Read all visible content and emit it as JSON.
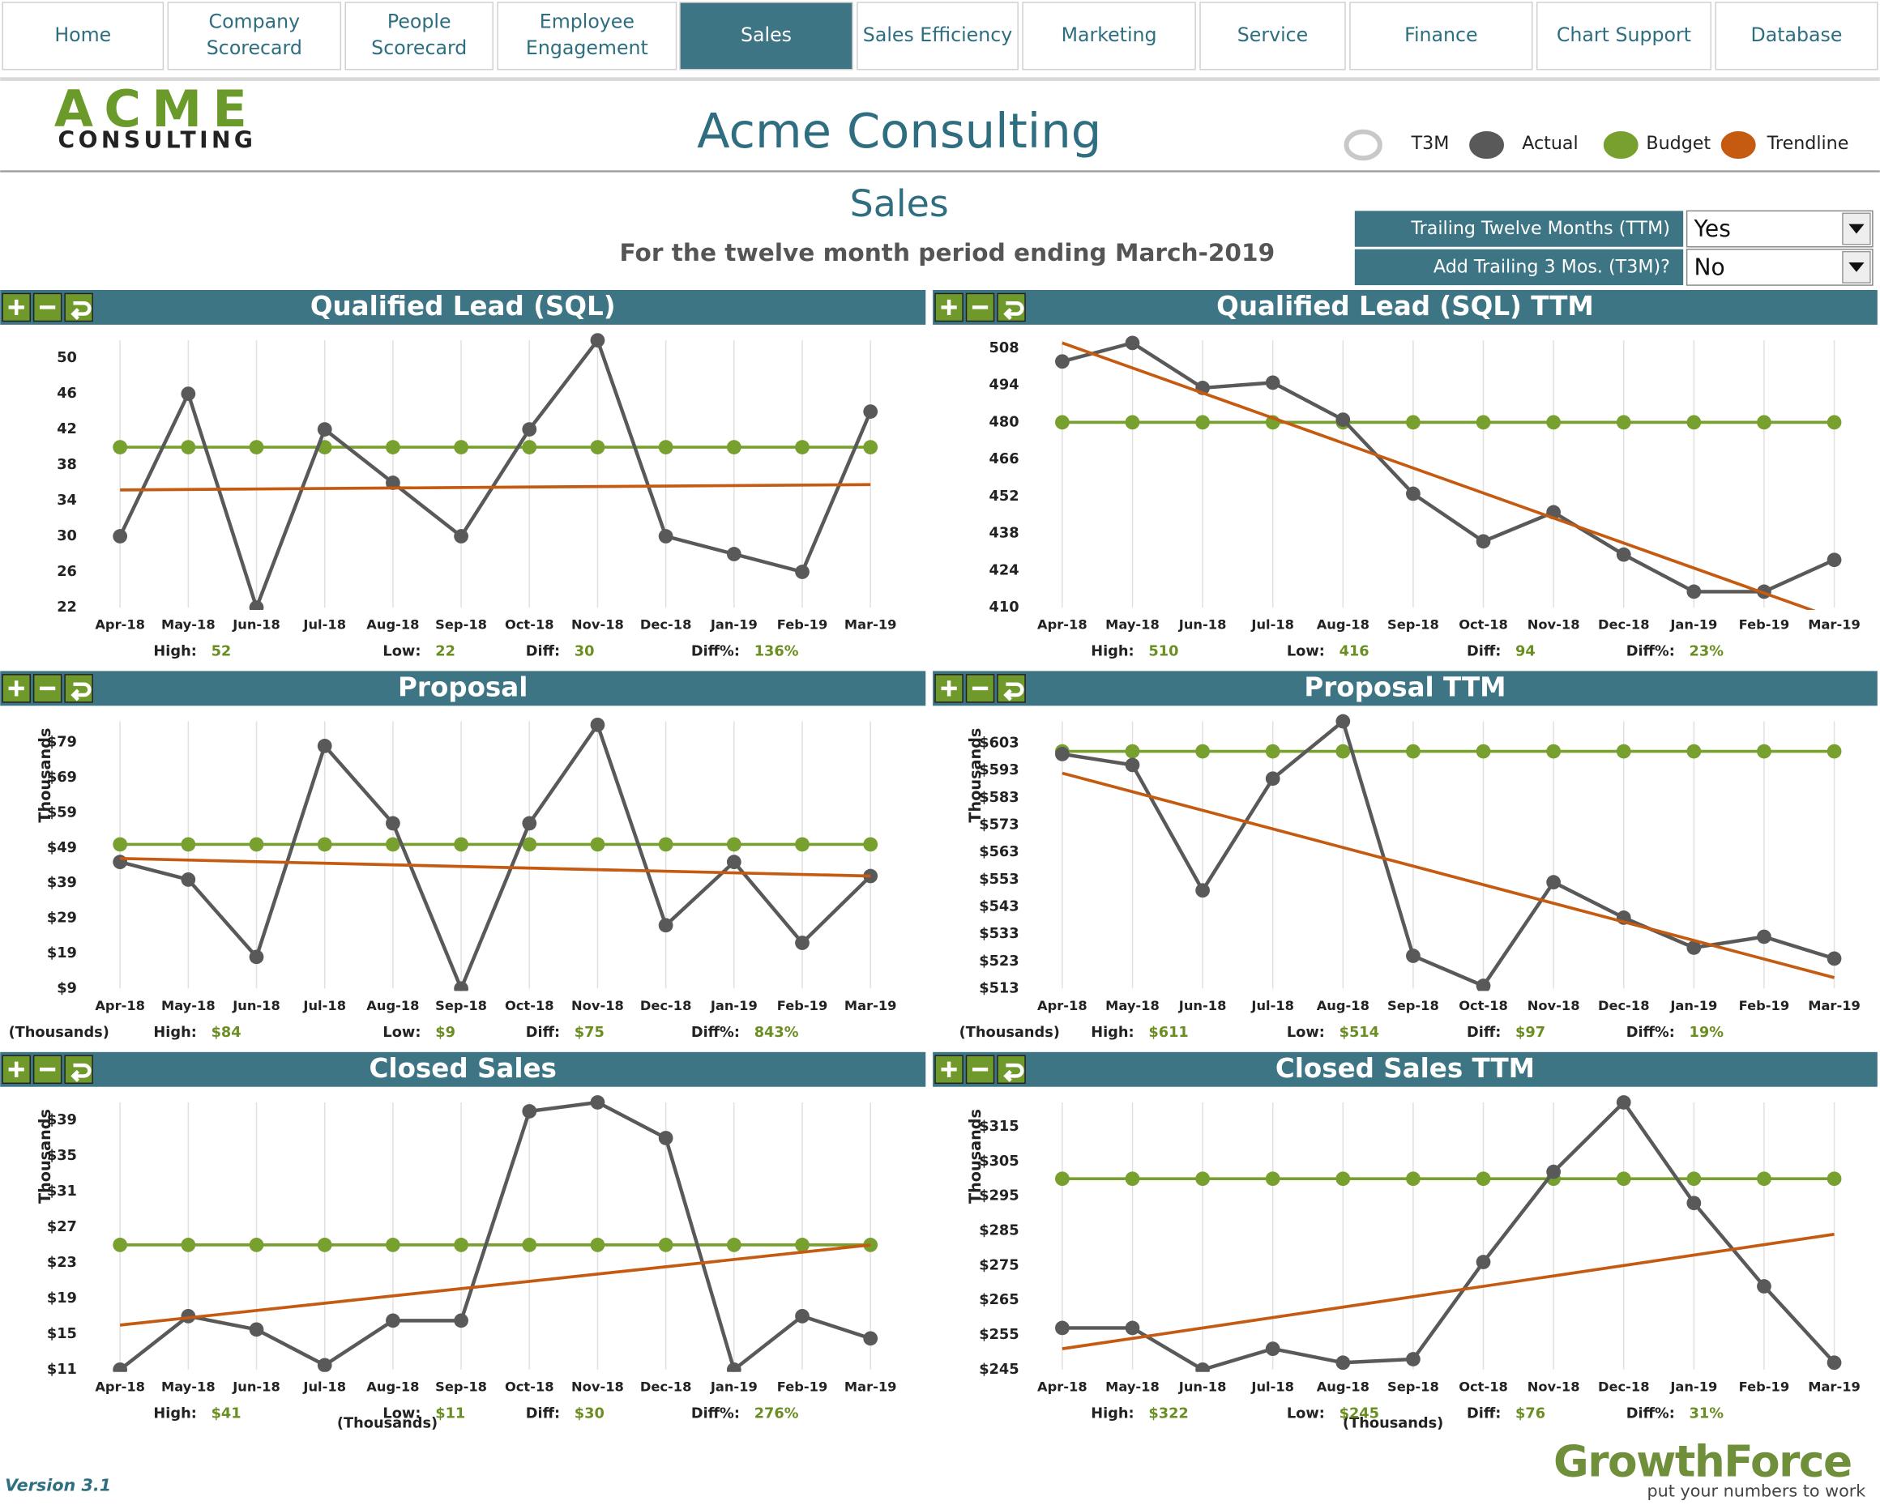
{
  "nav": [
    [
      "Home"
    ],
    [
      "Company",
      "Scorecard"
    ],
    [
      "People",
      "Scorecard"
    ],
    [
      "Employee",
      "Engagement"
    ],
    [
      "Sales"
    ],
    [
      "Sales Efficiency"
    ],
    [
      "Marketing"
    ],
    [
      "Service"
    ],
    [
      "Finance"
    ],
    [
      "Chart Support"
    ],
    [
      "Database"
    ]
  ],
  "active_tab": 4,
  "header": {
    "logo": [
      "ACME",
      "CONSULTING"
    ],
    "title": "Acme Consulting",
    "legend": [
      {
        "label": "T3M",
        "color": "#c8c8c8",
        "hollow": true
      },
      {
        "label": "Actual",
        "color": "#595959"
      },
      {
        "label": "Budget",
        "color": "#77a02e"
      },
      {
        "label": "Trendline",
        "color": "#c55a11"
      }
    ]
  },
  "page": {
    "title": "Sales",
    "subtitle": "For the twelve month period ending March-2019"
  },
  "controls": [
    {
      "label": "Trailing Twelve Months (TTM)",
      "value": "Yes"
    },
    {
      "label": "Add Trailing 3 Mos. (T3M)?",
      "value": "No"
    }
  ],
  "chart_data": [
    {
      "type": "line",
      "title": "Qualified Lead (SQL)",
      "categories": [
        "Apr-18",
        "May-18",
        "Jun-18",
        "Jul-18",
        "Aug-18",
        "Sep-18",
        "Oct-18",
        "Nov-18",
        "Dec-18",
        "Jan-19",
        "Feb-19",
        "Mar-19"
      ],
      "actual": [
        30,
        46,
        22,
        42,
        36,
        30,
        42,
        52,
        30,
        28,
        26,
        44
      ],
      "budget": [
        40,
        40,
        40,
        40,
        40,
        40,
        40,
        40,
        40,
        40,
        40,
        40
      ],
      "trend": [
        35.2,
        35.8
      ],
      "ylim": [
        22,
        52
      ],
      "yticks": [
        22,
        26,
        30,
        34,
        38,
        42,
        46,
        50
      ],
      "stats": [
        {
          "label": "High:",
          "value": "52"
        },
        {
          "label": "Low:",
          "value": "22"
        },
        {
          "label": "Diff:",
          "value": "30"
        },
        {
          "label": "Diff%:",
          "value": "136%"
        }
      ]
    },
    {
      "type": "line",
      "title": "Qualified Lead (SQL) TTM",
      "categories": [
        "Apr-18",
        "May-18",
        "Jun-18",
        "Jul-18",
        "Aug-18",
        "Sep-18",
        "Oct-18",
        "Nov-18",
        "Dec-18",
        "Jan-19",
        "Feb-19",
        "Mar-19"
      ],
      "actual": [
        503,
        510,
        493,
        495,
        481,
        453,
        435,
        446,
        430,
        416,
        416,
        428
      ],
      "budget": [
        480,
        480,
        480,
        480,
        480,
        480,
        480,
        480,
        480,
        480,
        480,
        480
      ],
      "trend": [
        510,
        406
      ],
      "ylim": [
        410,
        511
      ],
      "yticks": [
        410,
        424,
        438,
        452,
        466,
        480,
        494,
        508
      ],
      "stats": [
        {
          "label": "High:",
          "value": "510"
        },
        {
          "label": "Low:",
          "value": "416"
        },
        {
          "label": "Diff:",
          "value": "94"
        },
        {
          "label": "Diff%:",
          "value": "23%"
        }
      ]
    },
    {
      "type": "line",
      "title": "Proposal",
      "categories": [
        "Apr-18",
        "May-18",
        "Jun-18",
        "Jul-18",
        "Aug-18",
        "Sep-18",
        "Oct-18",
        "Nov-18",
        "Dec-18",
        "Jan-19",
        "Feb-19",
        "Mar-19"
      ],
      "actual": [
        45,
        40,
        18,
        78,
        56,
        9,
        56,
        84,
        27,
        45,
        22,
        41
      ],
      "budget": [
        50,
        50,
        50,
        50,
        50,
        50,
        50,
        50,
        50,
        50,
        50,
        50
      ],
      "trend": [
        46,
        41
      ],
      "ylim": [
        9,
        85
      ],
      "yticks": [
        {
          "value": 9,
          "label": "$9"
        },
        {
          "value": 19,
          "label": "$19"
        },
        {
          "value": 29,
          "label": "$29"
        },
        {
          "value": 39,
          "label": "$39"
        },
        {
          "value": 49,
          "label": "$49"
        },
        {
          "value": 59,
          "label": "$59"
        },
        {
          "value": 69,
          "label": "$69"
        },
        {
          "value": 79,
          "label": "$79"
        }
      ],
      "y_label": "Thousands",
      "units_note": "(Thousands)",
      "stats": [
        {
          "label": "High:",
          "value": "$84"
        },
        {
          "label": "Low:",
          "value": "$9"
        },
        {
          "label": "Diff:",
          "value": "$75"
        },
        {
          "label": "Diff%:",
          "value": "843%"
        }
      ]
    },
    {
      "type": "line",
      "title": "Proposal TTM",
      "categories": [
        "Apr-18",
        "May-18",
        "Jun-18",
        "Jul-18",
        "Aug-18",
        "Sep-18",
        "Oct-18",
        "Nov-18",
        "Dec-18",
        "Jan-19",
        "Feb-19",
        "Mar-19"
      ],
      "actual": [
        599,
        595,
        549,
        590,
        611,
        525,
        514,
        552,
        539,
        528,
        532,
        524
      ],
      "budget": [
        600,
        600,
        600,
        600,
        600,
        600,
        600,
        600,
        600,
        600,
        600,
        600
      ],
      "trend": [
        592,
        517
      ],
      "ylim": [
        513,
        611
      ],
      "yticks": [
        {
          "value": 513,
          "label": "$513"
        },
        {
          "value": 523,
          "label": "$523"
        },
        {
          "value": 533,
          "label": "$533"
        },
        {
          "value": 543,
          "label": "$543"
        },
        {
          "value": 553,
          "label": "$553"
        },
        {
          "value": 563,
          "label": "$563"
        },
        {
          "value": 573,
          "label": "$573"
        },
        {
          "value": 583,
          "label": "$583"
        },
        {
          "value": 593,
          "label": "$593"
        },
        {
          "value": 603,
          "label": "$603"
        }
      ],
      "y_label": "Thousands",
      "units_note": "(Thousands)",
      "stats": [
        {
          "label": "High:",
          "value": "$611"
        },
        {
          "label": "Low:",
          "value": "$514"
        },
        {
          "label": "Diff:",
          "value": "$97"
        },
        {
          "label": "Diff%:",
          "value": "19%"
        }
      ]
    },
    {
      "type": "line",
      "title": "Closed Sales",
      "categories": [
        "Apr-18",
        "May-18",
        "Jun-18",
        "Jul-18",
        "Aug-18",
        "Sep-18",
        "Oct-18",
        "Nov-18",
        "Dec-18",
        "Jan-19",
        "Feb-19",
        "Mar-19"
      ],
      "actual": [
        11,
        17,
        15.5,
        11.5,
        16.5,
        16.5,
        40,
        41,
        37,
        11,
        17,
        14.5
      ],
      "budget": [
        25,
        25,
        25,
        25,
        25,
        25,
        25,
        25,
        25,
        25,
        25,
        25
      ],
      "trend": [
        16,
        25
      ],
      "ylim": [
        11,
        41
      ],
      "yticks": [
        {
          "value": 11,
          "label": "$11"
        },
        {
          "value": 15,
          "label": "$15"
        },
        {
          "value": 19,
          "label": "$19"
        },
        {
          "value": 23,
          "label": "$23"
        },
        {
          "value": 27,
          "label": "$27"
        },
        {
          "value": 31,
          "label": "$31"
        },
        {
          "value": 35,
          "label": "$35"
        },
        {
          "value": 39,
          "label": "$39"
        }
      ],
      "y_label": "Thousands",
      "units_note": "(Thousands)",
      "stats": [
        {
          "label": "High:",
          "value": "$41"
        },
        {
          "label": "Low:",
          "value": "$11"
        },
        {
          "label": "Diff:",
          "value": "$30"
        },
        {
          "label": "Diff%:",
          "value": "276%"
        }
      ]
    },
    {
      "type": "line",
      "title": "Closed Sales TTM",
      "categories": [
        "Apr-18",
        "May-18",
        "Jun-18",
        "Jul-18",
        "Aug-18",
        "Sep-18",
        "Oct-18",
        "Nov-18",
        "Dec-18",
        "Jan-19",
        "Feb-19",
        "Mar-19"
      ],
      "actual": [
        257,
        257,
        245,
        251,
        247,
        248,
        276,
        302,
        322,
        293,
        269,
        247
      ],
      "budget": [
        300,
        300,
        300,
        300,
        300,
        300,
        300,
        300,
        300,
        300,
        300,
        300
      ],
      "trend": [
        251,
        284
      ],
      "ylim": [
        245,
        322
      ],
      "yticks": [
        {
          "value": 245,
          "label": "$245"
        },
        {
          "value": 255,
          "label": "$255"
        },
        {
          "value": 265,
          "label": "$265"
        },
        {
          "value": 275,
          "label": "$275"
        },
        {
          "value": 285,
          "label": "$285"
        },
        {
          "value": 295,
          "label": "$295"
        },
        {
          "value": 305,
          "label": "$305"
        },
        {
          "value": 315,
          "label": "$315"
        }
      ],
      "y_label": "Thousands",
      "units_note": "(Thousands)",
      "stats": [
        {
          "label": "High:",
          "value": "$322"
        },
        {
          "label": "Low:",
          "value": "$245"
        },
        {
          "label": "Diff:",
          "value": "$76"
        },
        {
          "label": "Diff%:",
          "value": "31%"
        }
      ]
    }
  ],
  "footer": {
    "version": "Version 3.1",
    "brand": "GrowthForce",
    "tagline": "put your numbers to work"
  }
}
